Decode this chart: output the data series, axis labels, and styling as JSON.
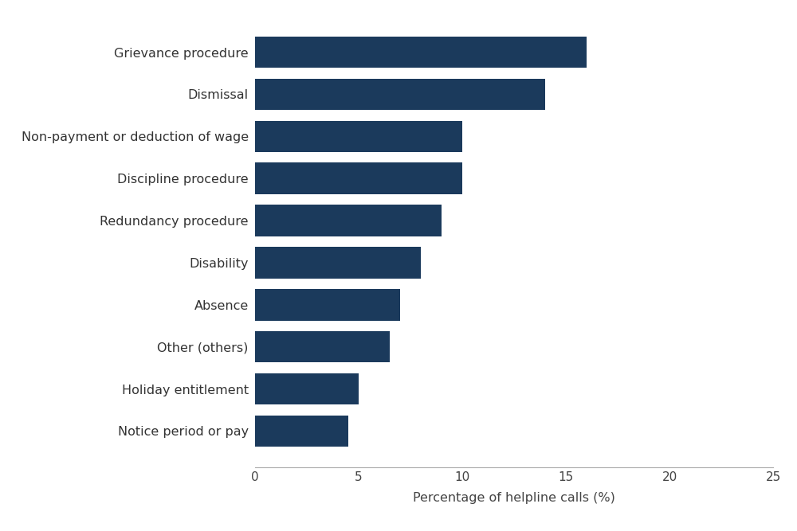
{
  "categories": [
    "Notice period or pay",
    "Holiday entitlement",
    "Other (others)",
    "Absence",
    "Disability",
    "Redundancy procedure",
    "Discipline procedure",
    "Non-payment or deduction of wage",
    "Dismissal",
    "Grievance procedure"
  ],
  "values": [
    4.5,
    5.0,
    6.5,
    7.0,
    8.0,
    9.0,
    10.0,
    10.0,
    14.0,
    16.0
  ],
  "bar_color": "#1b3a5c",
  "xlabel": "Percentage of helpline calls (%)",
  "xlim": [
    0,
    25
  ],
  "xticks": [
    0,
    5,
    10,
    15,
    20,
    25
  ],
  "background_color": "#ffffff",
  "bar_height": 0.75,
  "label_fontsize": 11.5,
  "tick_fontsize": 11,
  "xlabel_fontsize": 11.5
}
